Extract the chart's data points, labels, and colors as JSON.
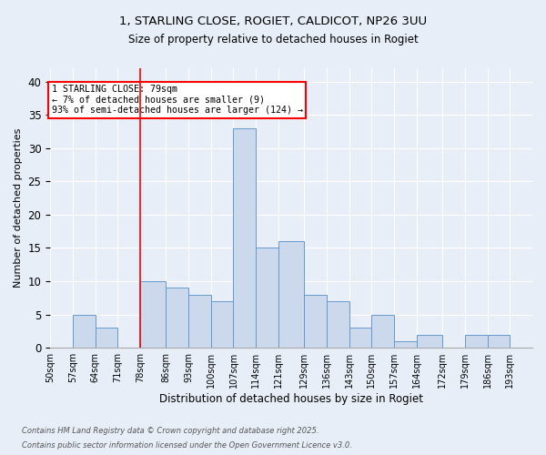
{
  "title1": "1, STARLING CLOSE, ROGIET, CALDICOT, NP26 3UU",
  "title2": "Size of property relative to detached houses in Rogiet",
  "xlabel": "Distribution of detached houses by size in Rogiet",
  "ylabel": "Number of detached properties",
  "bin_labels": [
    "50sqm",
    "57sqm",
    "64sqm",
    "71sqm",
    "78sqm",
    "86sqm",
    "93sqm",
    "100sqm",
    "107sqm",
    "114sqm",
    "121sqm",
    "129sqm",
    "136sqm",
    "143sqm",
    "150sqm",
    "157sqm",
    "164sqm",
    "172sqm",
    "179sqm",
    "186sqm",
    "193sqm"
  ],
  "bin_edges": [
    50,
    57,
    64,
    71,
    78,
    86,
    93,
    100,
    107,
    114,
    121,
    129,
    136,
    143,
    150,
    157,
    164,
    172,
    179,
    186,
    193,
    200
  ],
  "bar_values": [
    0,
    5,
    3,
    0,
    10,
    9,
    8,
    7,
    33,
    15,
    16,
    8,
    7,
    3,
    5,
    1,
    2,
    0,
    2,
    2,
    0
  ],
  "bar_color": "#ccd9ed",
  "bar_edge_color": "#6699cc",
  "red_line_x": 78,
  "annotation_text": "1 STARLING CLOSE: 79sqm\n← 7% of detached houses are smaller (9)\n93% of semi-detached houses are larger (124) →",
  "ylim": [
    0,
    42
  ],
  "yticks": [
    0,
    5,
    10,
    15,
    20,
    25,
    30,
    35,
    40
  ],
  "footnote1": "Contains HM Land Registry data © Crown copyright and database right 2025.",
  "footnote2": "Contains public sector information licensed under the Open Government Licence v3.0.",
  "bg_color": "#e8eef7",
  "plot_bg_color": "#e8eef7"
}
